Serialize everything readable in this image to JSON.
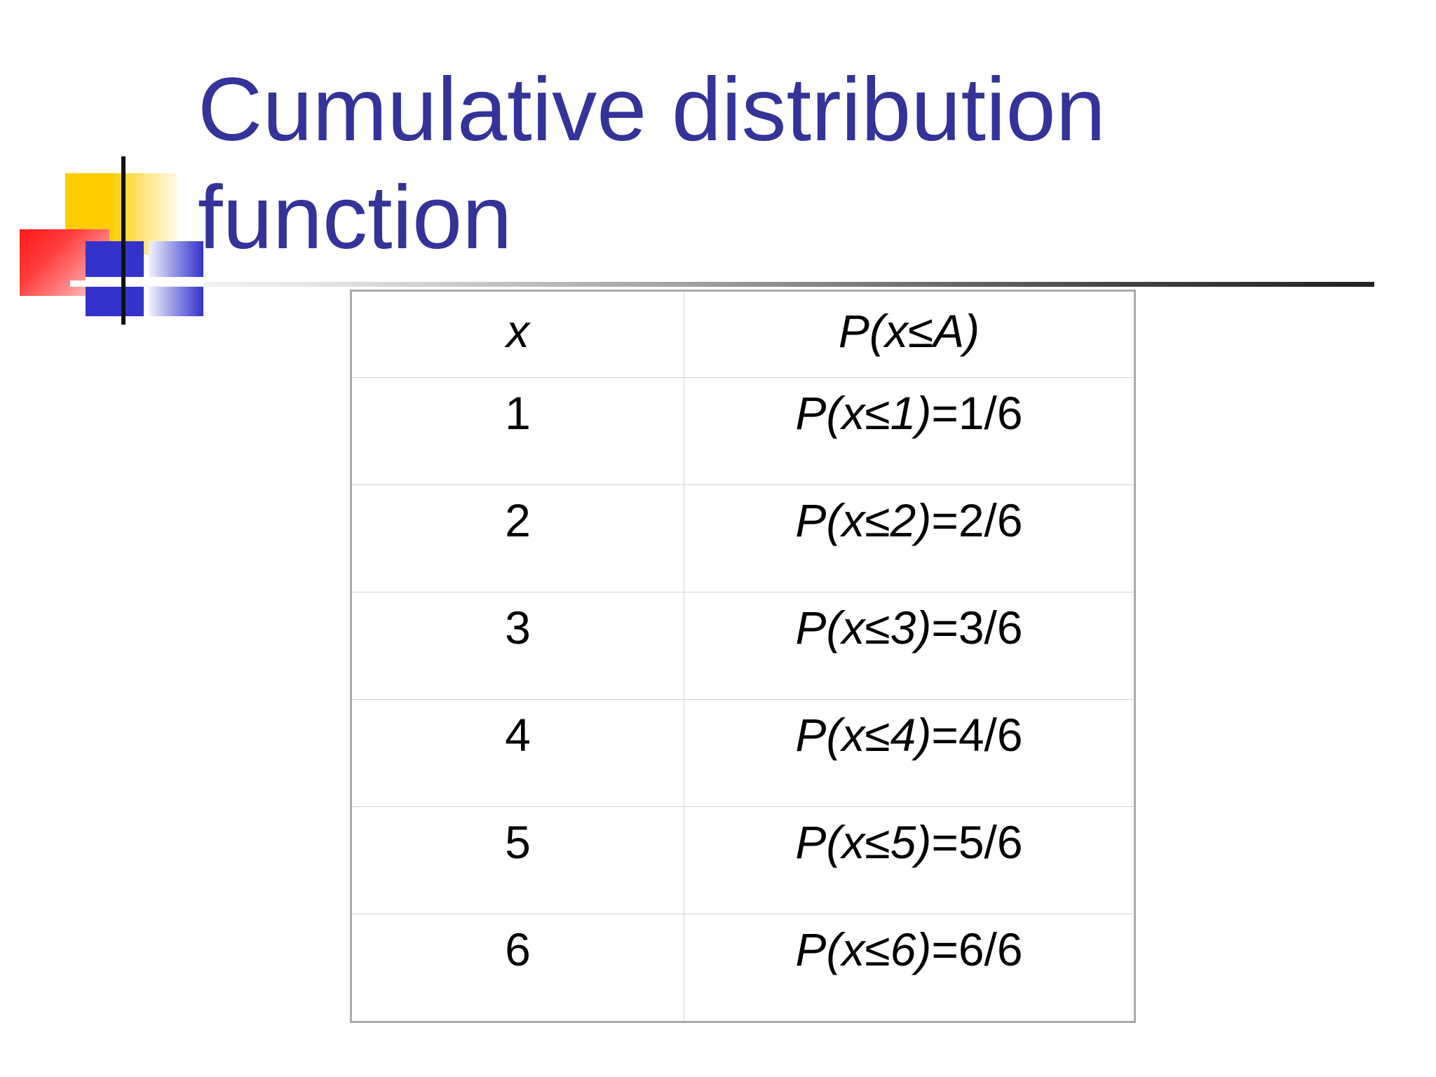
{
  "slide": {
    "title": "Cumulative distribution\nfunction"
  },
  "table": {
    "headers": {
      "x": "x",
      "p": "P(x≤A)"
    },
    "rows": [
      {
        "x": "1",
        "p_expr": "P(x≤1)",
        "p_value": "=1/6"
      },
      {
        "x": "2",
        "p_expr": "P(x≤2)",
        "p_value": "=2/6"
      },
      {
        "x": "3",
        "p_expr": "P(x≤3)",
        "p_value": "=3/6"
      },
      {
        "x": "4",
        "p_expr": "P(x≤4)",
        "p_value": "=4/6"
      },
      {
        "x": "5",
        "p_expr": "P(x≤5)",
        "p_value": "=5/6"
      },
      {
        "x": "6",
        "p_expr": "P(x≤6)",
        "p_value": "=6/6"
      }
    ]
  },
  "colors": {
    "title": "#333399",
    "accent_yellow": "#ffcc00",
    "accent_red": "#ff1a1a",
    "accent_blue": "#3333cc"
  }
}
